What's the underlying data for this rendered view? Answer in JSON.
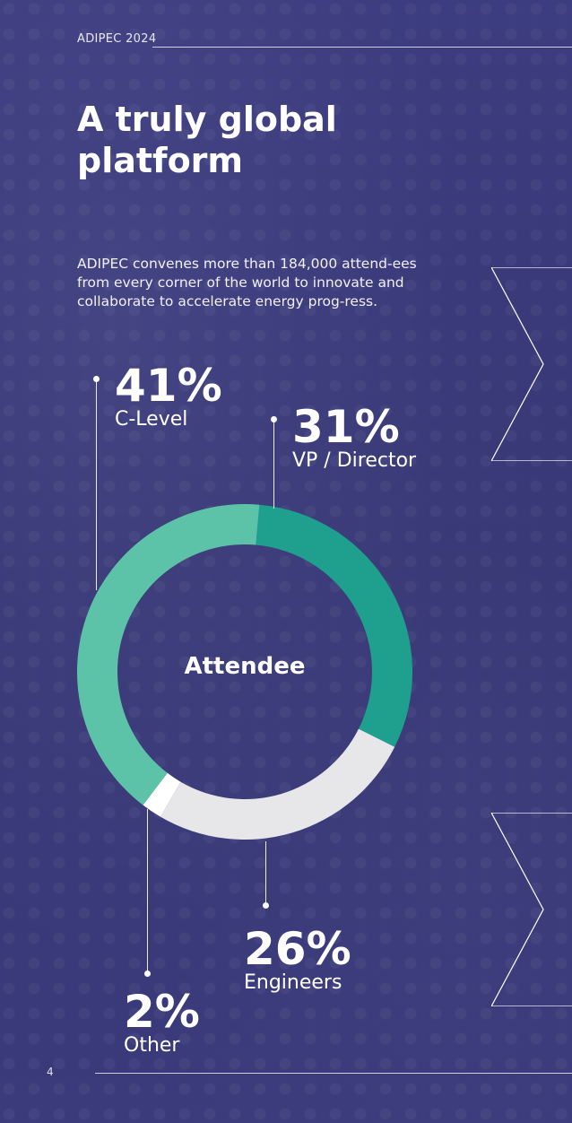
{
  "header": {
    "label": "ADIPEC 2024"
  },
  "title": "A truly global platform",
  "intro": "ADIPEC convenes more than 184,000 attend-ees from every corner of the world to innovate and collaborate to accelerate energy prog-ress.",
  "footer": {
    "page_number": "4"
  },
  "chart_data": {
    "type": "pie",
    "title": "",
    "center_label": "Attendee",
    "slices": [
      {
        "label": "VP / Director",
        "value": 31,
        "pct_text": "31%",
        "color": "#1fa08e"
      },
      {
        "label": "Engineers",
        "value": 26,
        "pct_text": "26%",
        "color": "#e7e7ea"
      },
      {
        "label": "Other",
        "value": 2,
        "pct_text": "2%",
        "color": "#ffffff"
      },
      {
        "label": "C-Level",
        "value": 41,
        "pct_text": "41%",
        "color": "#5dc3a8"
      }
    ]
  }
}
